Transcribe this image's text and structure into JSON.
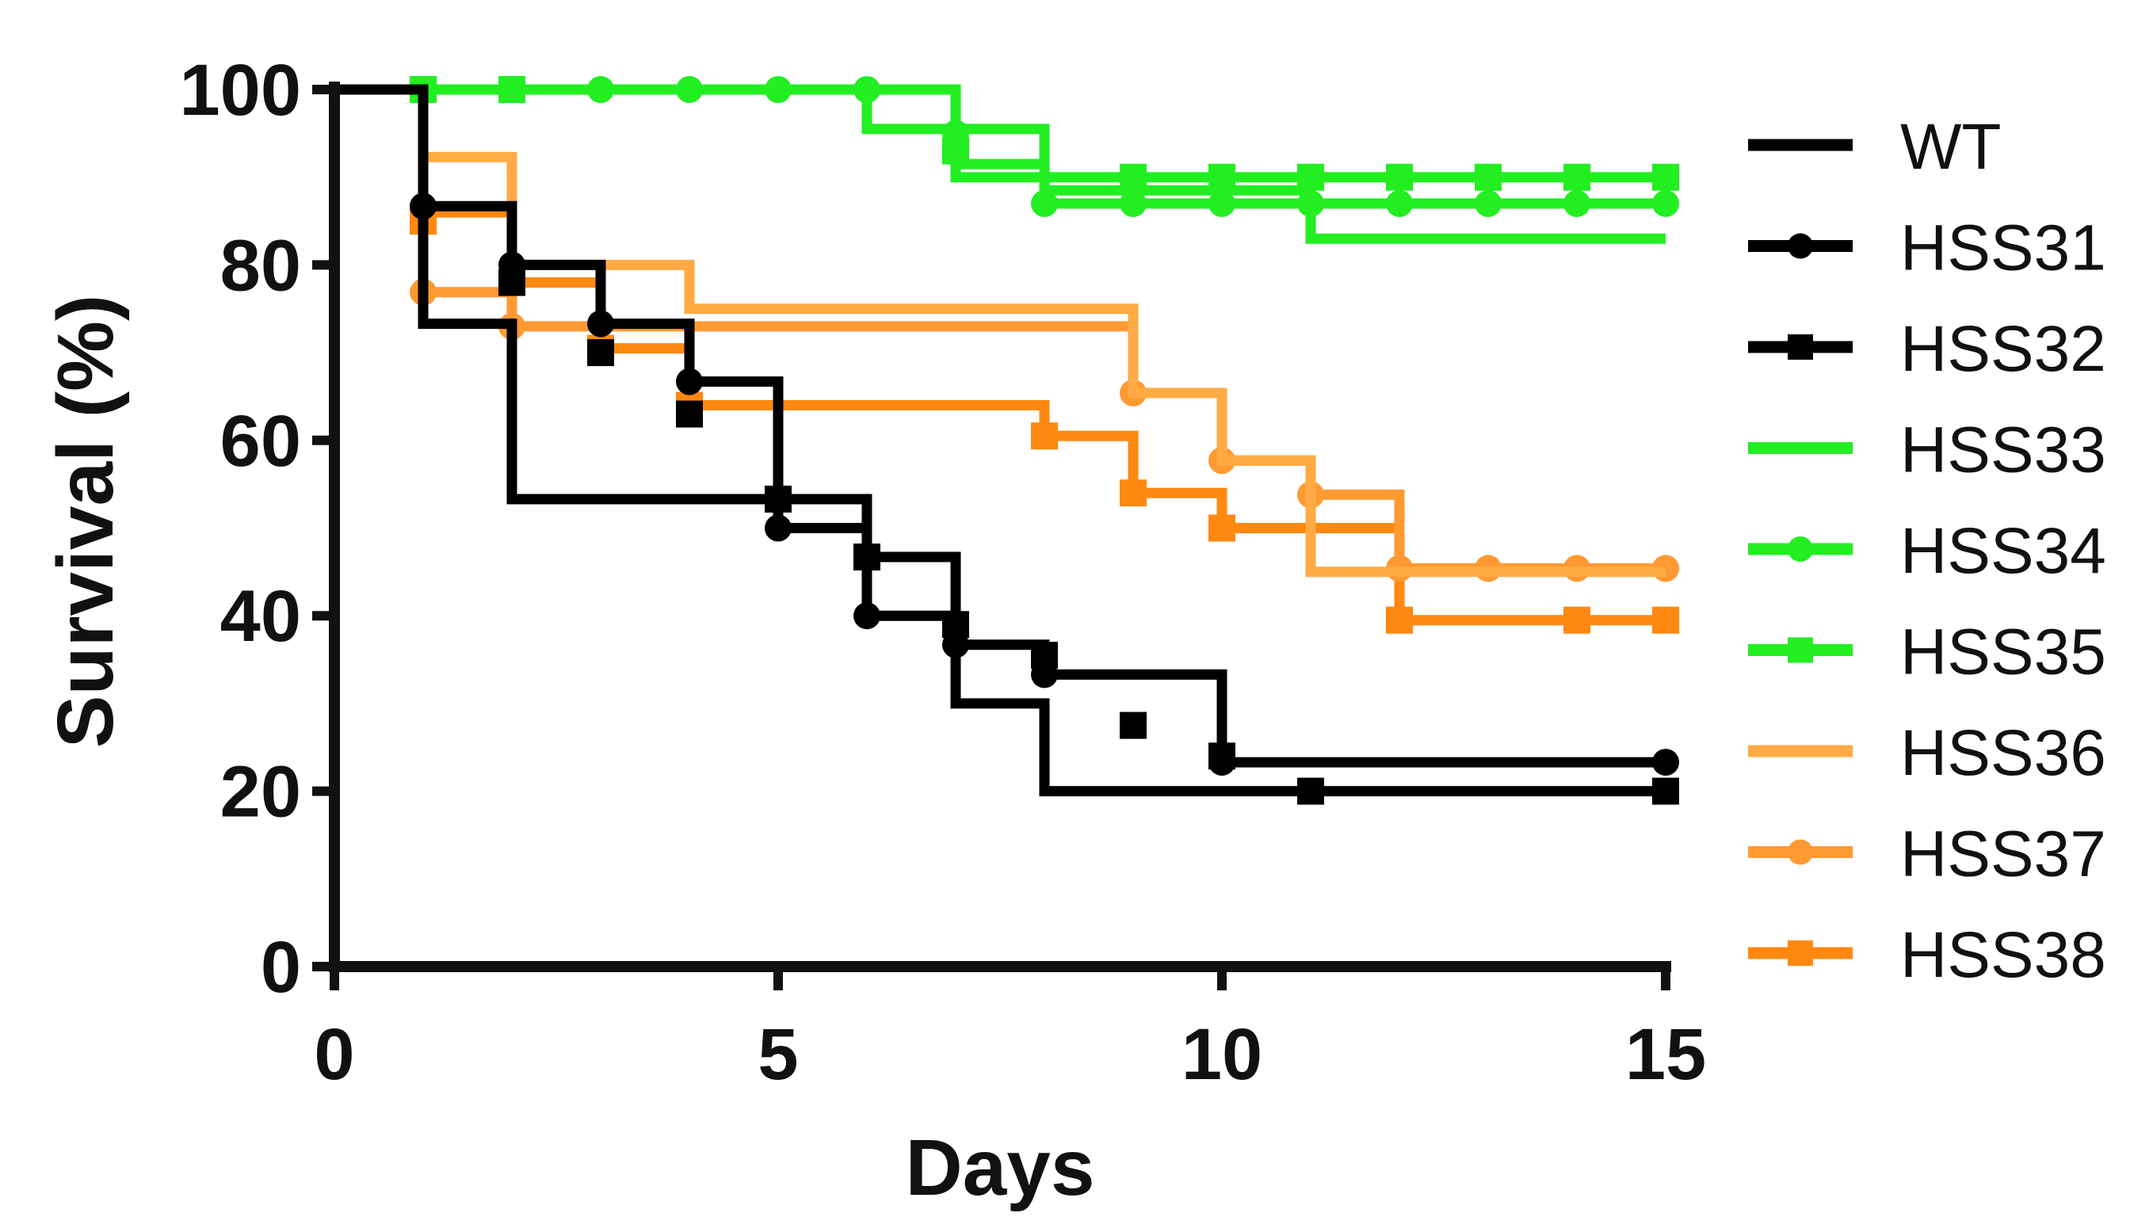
{
  "chart_data": {
    "type": "line",
    "subtype": "kaplan-meier step survival curves",
    "xlabel": "Days",
    "ylabel": "Survival (%)",
    "xlim": [
      0,
      15
    ],
    "ylim": [
      0,
      100
    ],
    "x_ticks": [
      0,
      5,
      10,
      15
    ],
    "x_tick_labels": [
      "0",
      "5",
      "10",
      "15"
    ],
    "y_ticks": [
      0,
      20,
      40,
      60,
      80,
      100
    ],
    "y_tick_labels": [
      "0",
      "20",
      "40",
      "60",
      "80",
      "100"
    ],
    "grid": false,
    "legend_position": "right",
    "series": [
      {
        "name": "WT",
        "color": "#000000",
        "marker": "none",
        "steps": [
          [
            0,
            100
          ],
          [
            0,
            0
          ]
        ],
        "markers": []
      },
      {
        "name": "HSS31",
        "color": "#000000",
        "marker": "circle",
        "steps": [
          [
            0,
            100
          ],
          [
            1,
            100
          ],
          [
            1,
            86.7
          ],
          [
            2,
            86.7
          ],
          [
            2,
            80
          ],
          [
            3,
            80
          ],
          [
            3,
            73.3
          ],
          [
            4,
            73.3
          ],
          [
            4,
            66.7
          ],
          [
            5,
            66.7
          ],
          [
            5,
            50
          ],
          [
            6,
            50
          ],
          [
            6,
            40
          ],
          [
            7,
            40
          ],
          [
            7,
            36.7
          ],
          [
            8,
            36.7
          ],
          [
            8,
            33.3
          ],
          [
            10,
            33.3
          ],
          [
            10,
            23.3
          ],
          [
            15,
            23.3
          ]
        ],
        "markers": [
          [
            1,
            86.7
          ],
          [
            2,
            80
          ],
          [
            3,
            73.3
          ],
          [
            4,
            66.7
          ],
          [
            5,
            50
          ],
          [
            6,
            40
          ],
          [
            7,
            36.7
          ],
          [
            8,
            33.3
          ],
          [
            10,
            23.3
          ],
          [
            15,
            23.3
          ]
        ]
      },
      {
        "name": "HSS32",
        "color": "#000000",
        "marker": "square",
        "steps": [
          [
            0,
            100
          ],
          [
            1,
            100
          ],
          [
            1,
            73.3
          ],
          [
            2,
            73.3
          ],
          [
            2,
            53.3
          ],
          [
            5,
            53.3
          ],
          [
            6,
            53.3
          ],
          [
            6,
            46.7
          ],
          [
            7,
            46.7
          ],
          [
            7,
            30
          ],
          [
            8,
            30
          ],
          [
            8,
            20
          ],
          [
            15,
            20
          ]
        ],
        "markers": [
          [
            2,
            78
          ],
          [
            3,
            70
          ],
          [
            4,
            63
          ],
          [
            5,
            53.3
          ],
          [
            6,
            46.7
          ],
          [
            7,
            39
          ],
          [
            8,
            35.5
          ],
          [
            9,
            27.5
          ],
          [
            10,
            24
          ],
          [
            11,
            20
          ],
          [
            15,
            20
          ]
        ]
      },
      {
        "name": "HSS33",
        "color": "#22ee22",
        "marker": "none",
        "steps": [
          [
            0,
            100
          ],
          [
            6,
            100
          ],
          [
            6,
            95.5
          ],
          [
            8,
            95.5
          ],
          [
            8,
            88.5
          ],
          [
            11,
            88.5
          ],
          [
            11,
            83
          ],
          [
            15,
            83
          ]
        ],
        "markers": []
      },
      {
        "name": "HSS34",
        "color": "#22ee22",
        "marker": "circle",
        "steps": [
          [
            0,
            100
          ],
          [
            7,
            100
          ],
          [
            7,
            91.5
          ],
          [
            8,
            91.5
          ],
          [
            8,
            87
          ],
          [
            15,
            87
          ]
        ],
        "markers": [
          [
            1,
            100
          ],
          [
            2,
            100
          ],
          [
            3,
            100
          ],
          [
            4,
            100
          ],
          [
            5,
            100
          ],
          [
            6,
            100
          ],
          [
            7,
            95
          ],
          [
            8,
            87
          ],
          [
            9,
            87
          ],
          [
            10,
            87
          ],
          [
            11,
            87
          ],
          [
            12,
            87
          ],
          [
            13,
            87
          ],
          [
            14,
            87
          ],
          [
            15,
            87
          ]
        ]
      },
      {
        "name": "HSS35",
        "color": "#22ee22",
        "marker": "square",
        "steps": [
          [
            0,
            100
          ],
          [
            7,
            100
          ],
          [
            7,
            90
          ],
          [
            15,
            90
          ]
        ],
        "markers": [
          [
            1,
            100
          ],
          [
            2,
            100
          ],
          [
            7,
            93
          ],
          [
            9,
            90
          ],
          [
            10,
            90
          ],
          [
            11,
            90
          ],
          [
            12,
            90
          ],
          [
            13,
            90
          ],
          [
            14,
            90
          ],
          [
            15,
            90
          ]
        ]
      },
      {
        "name": "HSS36",
        "color": "#ffaa44",
        "marker": "none",
        "steps": [
          [
            0,
            100
          ],
          [
            1,
            100
          ],
          [
            1,
            92.3
          ],
          [
            2,
            92.3
          ],
          [
            2,
            80
          ],
          [
            4,
            80
          ],
          [
            4,
            75
          ],
          [
            9,
            75
          ],
          [
            9,
            65.4
          ],
          [
            10,
            65.4
          ],
          [
            10,
            57.7
          ],
          [
            11,
            57.7
          ],
          [
            11,
            45
          ],
          [
            15,
            45
          ]
        ],
        "markers": []
      },
      {
        "name": "HSS37",
        "color": "#ff9a33",
        "marker": "circle",
        "steps": [
          [
            0,
            100
          ],
          [
            1,
            100
          ],
          [
            1,
            76.9
          ],
          [
            2,
            76.9
          ],
          [
            2,
            73
          ],
          [
            4,
            73
          ],
          [
            9,
            73
          ],
          [
            9,
            65.4
          ],
          [
            10,
            65.4
          ],
          [
            10,
            57.7
          ],
          [
            11,
            57.7
          ],
          [
            11,
            53.8
          ],
          [
            12,
            53.8
          ],
          [
            12,
            45.4
          ],
          [
            15,
            45.4
          ]
        ],
        "markers": [
          [
            1,
            76.9
          ],
          [
            2,
            73
          ],
          [
            9,
            65.4
          ],
          [
            10,
            57.7
          ],
          [
            11,
            53.8
          ],
          [
            12,
            45.4
          ],
          [
            13,
            45.4
          ],
          [
            14,
            45.4
          ],
          [
            15,
            45.4
          ]
        ]
      },
      {
        "name": "HSS38",
        "color": "#ff8811",
        "marker": "square",
        "steps": [
          [
            0,
            100
          ],
          [
            1,
            100
          ],
          [
            1,
            86
          ],
          [
            2,
            86
          ],
          [
            2,
            78
          ],
          [
            3,
            78
          ],
          [
            3,
            70.5
          ],
          [
            4,
            70.5
          ],
          [
            4,
            64
          ],
          [
            8,
            64
          ],
          [
            8,
            60.5
          ],
          [
            9,
            60.5
          ],
          [
            9,
            54
          ],
          [
            10,
            54
          ],
          [
            10,
            50
          ],
          [
            12,
            50
          ],
          [
            12,
            39.5
          ],
          [
            15,
            39.5
          ]
        ],
        "markers": [
          [
            1,
            85
          ],
          [
            2,
            78
          ],
          [
            3,
            70.5
          ],
          [
            4,
            64
          ],
          [
            8,
            60.5
          ],
          [
            9,
            54
          ],
          [
            10,
            50
          ],
          [
            12,
            39.5
          ],
          [
            14,
            39.5
          ],
          [
            15,
            39.5
          ]
        ]
      }
    ]
  }
}
